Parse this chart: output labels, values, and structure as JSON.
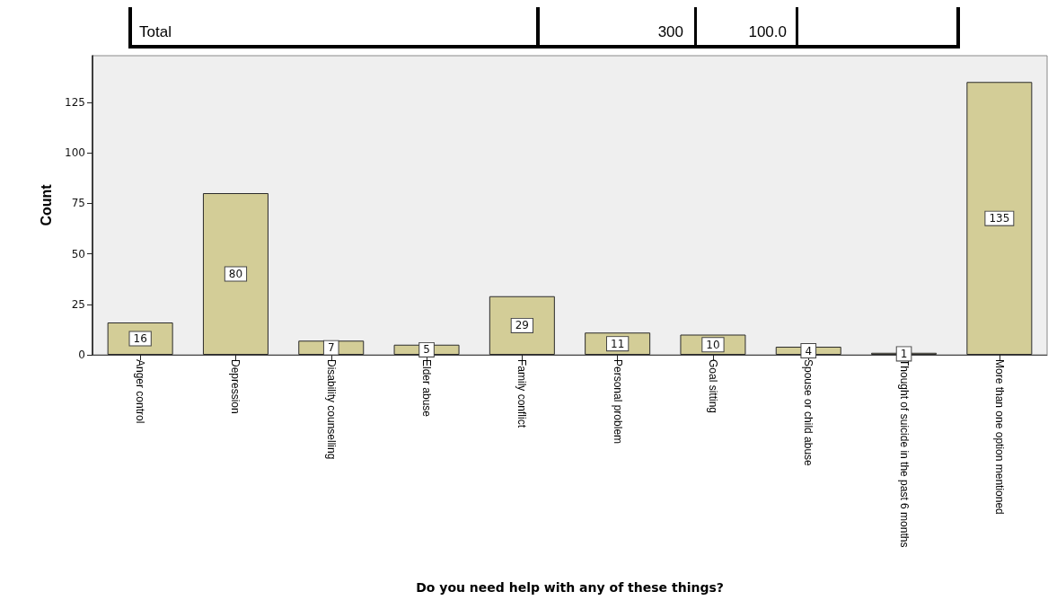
{
  "chart_data": {
    "type": "bar",
    "xlabel": "Do you need help with any of these things?",
    "ylabel": "Count",
    "categories": [
      "Anger control",
      "Depression",
      "Disability counselling",
      "Elder abuse",
      "Family conflict",
      "Personal problem",
      "Goal sitting",
      "Spouse or child abuse",
      "Thought of suicide in the past 6 months",
      "More than one option mentioned"
    ],
    "values": [
      16,
      80,
      7,
      5,
      29,
      11,
      10,
      4,
      1,
      135
    ],
    "color": "#d3cd97",
    "ylim": [
      0,
      148
    ],
    "yticks": [
      0,
      25,
      50,
      75,
      100,
      125
    ],
    "data_labels": true,
    "annotations": [
      "Total",
      "300",
      "100.0"
    ]
  }
}
